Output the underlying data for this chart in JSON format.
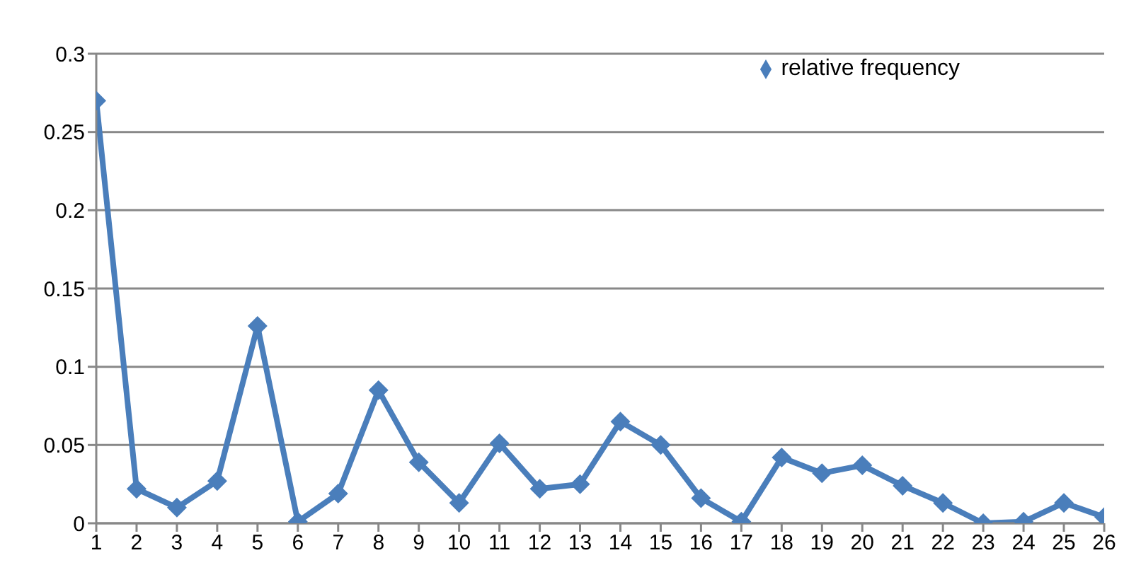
{
  "chart_data": {
    "type": "line",
    "x": [
      1,
      2,
      3,
      4,
      5,
      6,
      7,
      8,
      9,
      10,
      11,
      12,
      13,
      14,
      15,
      16,
      17,
      18,
      19,
      20,
      21,
      22,
      23,
      24,
      25,
      26
    ],
    "series": [
      {
        "name": "relative frequency",
        "color": "#4a7ebb",
        "values": [
          0.27,
          0.022,
          0.01,
          0.027,
          0.126,
          0.001,
          0.019,
          0.085,
          0.039,
          0.013,
          0.051,
          0.022,
          0.025,
          0.065,
          0.05,
          0.016,
          0.001,
          0.042,
          0.032,
          0.037,
          0.024,
          0.013,
          0,
          0.001,
          0.013,
          0.004
        ]
      }
    ],
    "xlim": [
      1,
      26
    ],
    "xticks": [
      1,
      2,
      3,
      4,
      5,
      6,
      7,
      8,
      9,
      10,
      11,
      12,
      13,
      14,
      15,
      16,
      17,
      18,
      19,
      20,
      21,
      22,
      23,
      24,
      25,
      26
    ],
    "ylim": [
      0,
      0.3
    ],
    "yticks": [
      0,
      0.05,
      0.1,
      0.15,
      0.2,
      0.25,
      0.3
    ],
    "grid": "y",
    "legend": "top right",
    "marker": "diamond",
    "line_style": "solid"
  }
}
